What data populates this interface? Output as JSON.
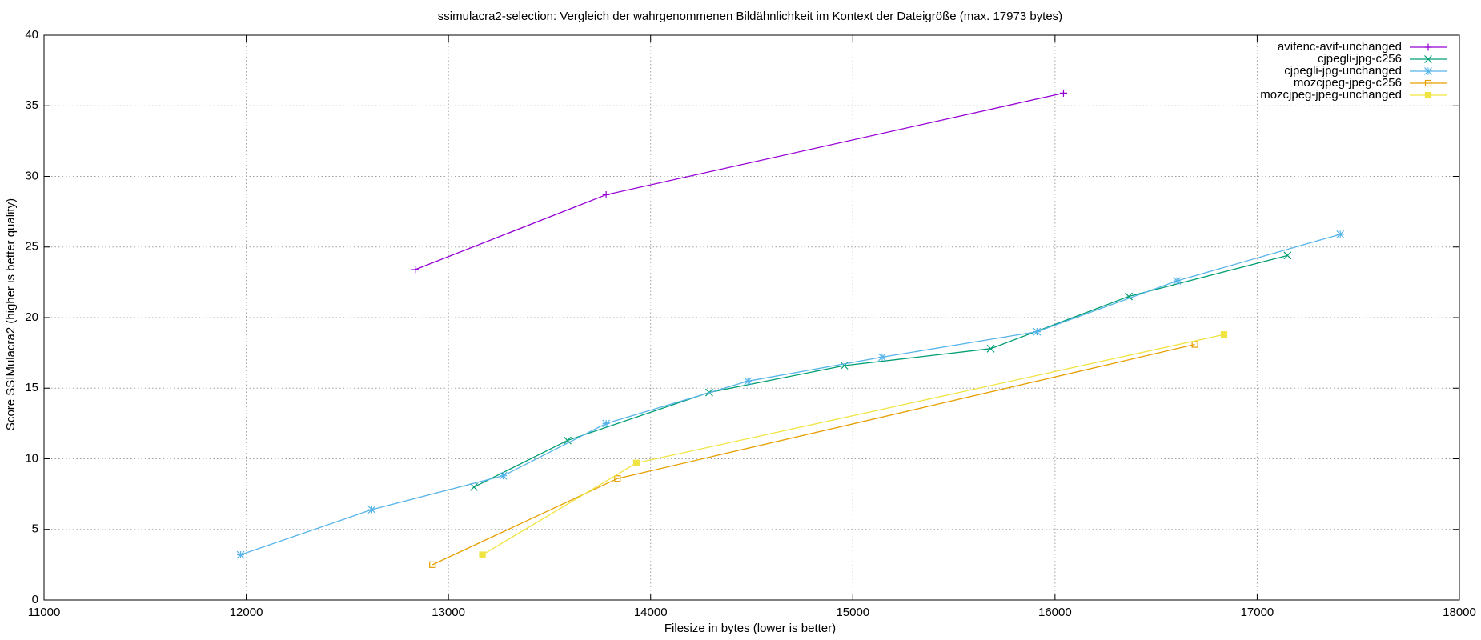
{
  "chart_data": {
    "type": "line",
    "title": "ssimulacra2-selection: Vergleich der wahrgenommenen Bildähnlichkeit im Kontext der Dateigröße (max. 17973 bytes)",
    "x_label": "Filesize in bytes (lower is better)",
    "y_label": "Score SSIMulacra2 (higher is better quality)",
    "xlim": [
      11000,
      18000
    ],
    "xticks": [
      11000,
      12000,
      13000,
      14000,
      15000,
      16000,
      17000,
      18000
    ],
    "ylim": [
      0,
      40
    ],
    "yticks": [
      0,
      5,
      10,
      15,
      20,
      25,
      30,
      35,
      40
    ],
    "grid": true,
    "legend": "top-right",
    "series": [
      {
        "name": "avifenc-avif-unchanged",
        "color": "#9400d3",
        "marker": "plus",
        "x": [
          12836,
          13780,
          16042
        ],
        "values": [
          23.4,
          28.7,
          35.9
        ]
      },
      {
        "name": "cjpegli-jpg-c256",
        "color": "#009e73",
        "marker": "cross",
        "x": [
          13126,
          13589,
          14290,
          14958,
          15682,
          16365,
          17150
        ],
        "values": [
          8.0,
          11.3,
          14.7,
          16.6,
          17.8,
          21.5,
          24.4
        ]
      },
      {
        "name": "cjpegli-jpg-unchanged",
        "color": "#56b4e9",
        "marker": "star",
        "x": [
          11972,
          12621,
          13271,
          13780,
          14481,
          15145,
          15911,
          16603,
          17411
        ],
        "values": [
          3.2,
          6.4,
          8.8,
          12.5,
          15.5,
          17.2,
          19.0,
          22.6,
          25.9
        ]
      },
      {
        "name": "mozcjpeg-jpeg-c256",
        "color": "#e69f00",
        "marker": "box",
        "x": [
          12921,
          13836,
          16692
        ],
        "values": [
          2.5,
          8.6,
          18.1
        ]
      },
      {
        "name": "mozcjpeg-jpeg-unchanged",
        "color": "#f0e442",
        "marker": "filled-box",
        "x": [
          13168,
          13930,
          16836
        ],
        "values": [
          3.2,
          9.7,
          18.8
        ]
      }
    ]
  }
}
